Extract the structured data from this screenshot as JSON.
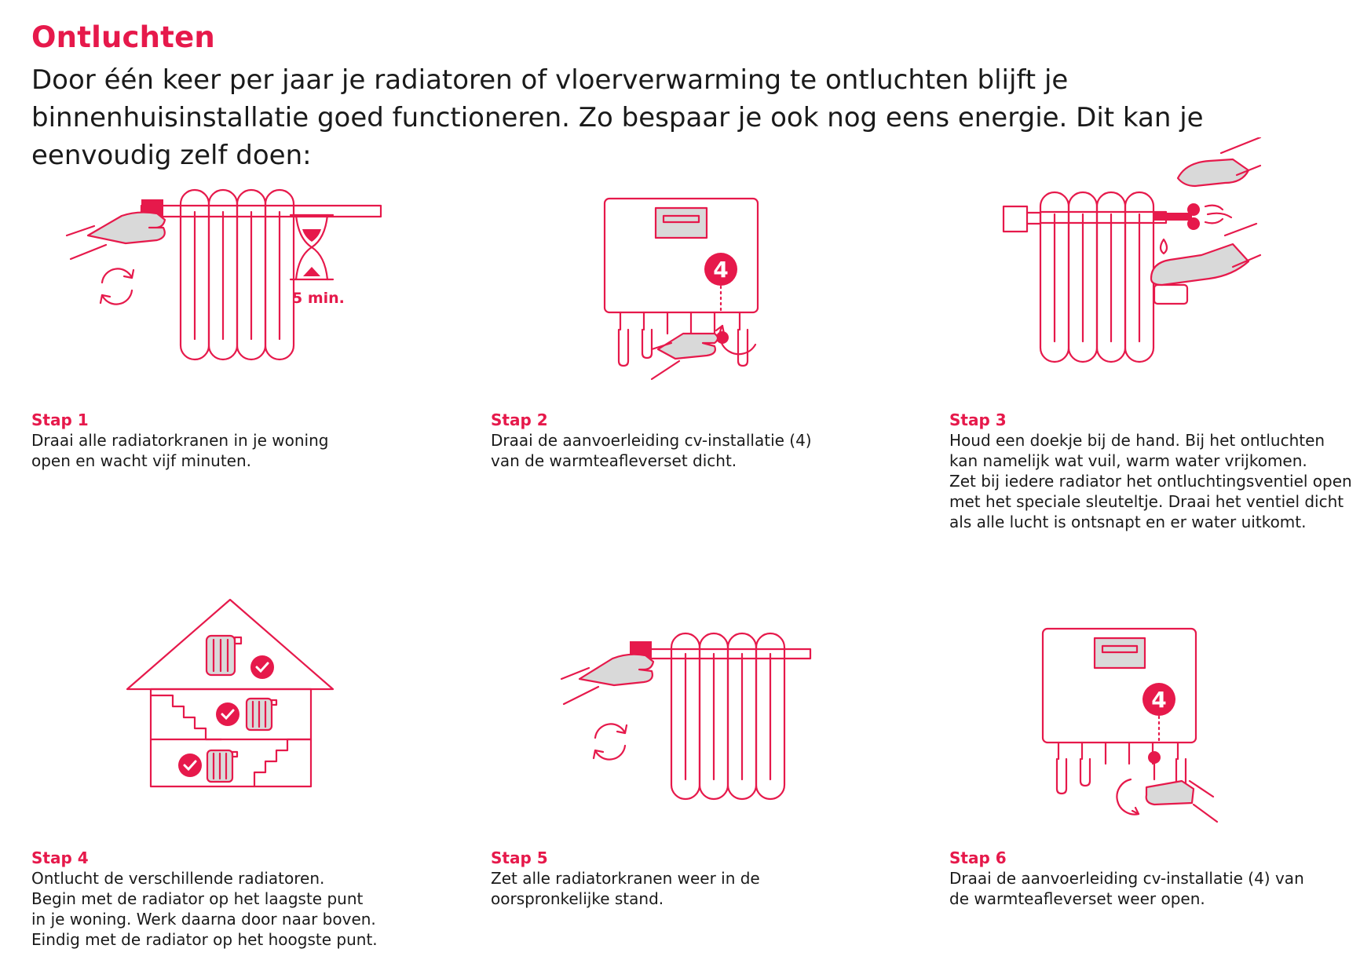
{
  "title": "Ontluchten",
  "intro": "Door één keer per jaar je radiatoren of vloerverwarming te ontluchten blijft je binnenhuisinstallatie goed functioneren. Zo bespaar je ook nog eens energie. Dit kan je eenvoudig zelf doen:",
  "colors": {
    "accent": "#e6194b",
    "hand_fill": "#d9d9d9",
    "text": "#1a1a1a"
  },
  "illustrations": {
    "step1_timer_label": "5 min.",
    "step2_badge": "4",
    "step6_badge": "4"
  },
  "steps": [
    {
      "label": "Stap 1",
      "text": "Draai alle radiatorkranen in je woning\nopen en wacht vijf minuten."
    },
    {
      "label": "Stap 2",
      "text": "Draai de aanvoerleiding cv-installatie (4)\nvan de warmteafleverset dicht."
    },
    {
      "label": "Stap 3",
      "text": "Houd een doekje bij de hand. Bij het ontluchten\nkan namelijk wat vuil, warm water vrijkomen.\nZet bij iedere radiator het ontluchtingsventiel open\nmet het speciale sleuteltje. Draai het ventiel dicht\nals alle lucht is ontsnapt en er water uitkomt."
    },
    {
      "label": "Stap 4",
      "text": "Ontlucht de verschillende radiatoren.\nBegin met de radiator op het laagste punt\nin je woning. Werk daarna door naar boven.\nEindig met de radiator op het hoogste punt."
    },
    {
      "label": "Stap 5",
      "text": "Zet alle radiatorkranen weer in de\noorspronkelijke stand."
    },
    {
      "label": "Stap 6",
      "text": "Draai de aanvoerleiding cv-installatie (4) van\nde warmteafleverset weer open."
    }
  ]
}
